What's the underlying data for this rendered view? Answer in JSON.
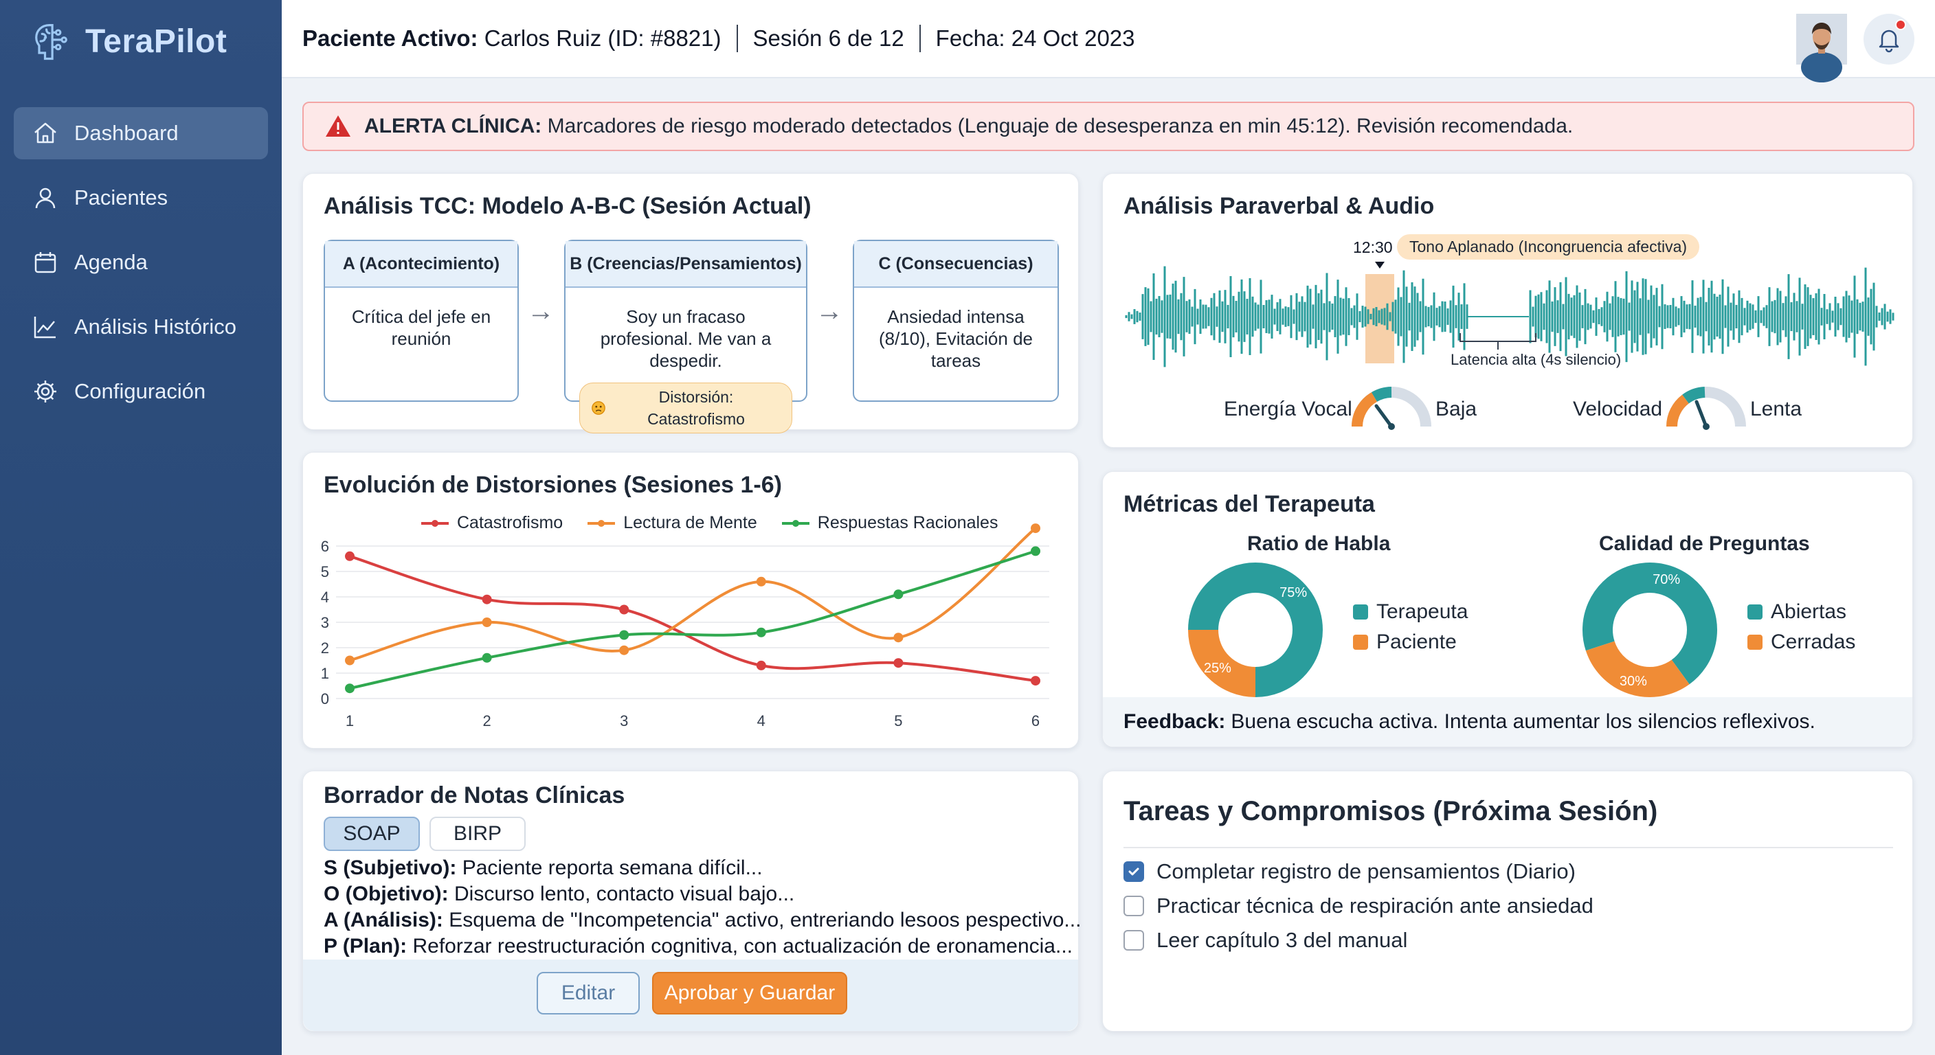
{
  "app": {
    "name": "TeraPilot"
  },
  "sidebar": {
    "items": [
      {
        "label": "Dashboard",
        "icon": "home-icon",
        "active": true
      },
      {
        "label": "Pacientes",
        "icon": "user-icon",
        "active": false
      },
      {
        "label": "Agenda",
        "icon": "calendar-icon",
        "active": false
      },
      {
        "label": "Análisis Histórico",
        "icon": "chart-line-icon",
        "active": false
      },
      {
        "label": "Configuración",
        "icon": "gear-icon",
        "active": false
      }
    ]
  },
  "header": {
    "patient_label": "Paciente Activo:",
    "patient_value": "Carlos Ruiz (ID: #8821)",
    "session": "Sesión 6 de 12",
    "date": "Fecha: 24 Oct 2023"
  },
  "alert": {
    "label": "ALERTA CLÍNICA:",
    "text": "Marcadores de riesgo moderado detectados (Lenguaje de desesperanza en min 45:12). Revisión recomendada."
  },
  "abc": {
    "title": "Análisis TCC: Modelo A-B-C (Sesión Actual)",
    "a_head": "A (Acontecimiento)",
    "a_body": "Crítica del jefe en reunión",
    "b_head": "B (Creencias/Pensamientos)",
    "b_body": "Soy un fracaso profesional. Me van a despedir.",
    "b_badge": "Distorsión: Catastrofismo",
    "c_head": "C (Consecuencias)",
    "c_body": "Ansiedad intensa (8/10), Evitación de tareas"
  },
  "paraverbal": {
    "title": "Análisis Paraverbal & Audio",
    "marker_time": "12:30",
    "tone_badge": "Tono Aplanado (Incongruencia afectiva)",
    "latency": "Latencia alta (4s silencio)",
    "energy_label": "Energía Vocal",
    "energy_value": "Baja",
    "speed_label": "Velocidad",
    "speed_value": "Lenta",
    "colors": {
      "wave": "#2a9d9c",
      "highlight": "#f6c89a"
    }
  },
  "evolution": {
    "title": "Evolución de Distorsiones (Sesiones 1-6)"
  },
  "chart_data": {
    "type": "line",
    "x": [
      1,
      2,
      3,
      4,
      5,
      6
    ],
    "series": [
      {
        "name": "Catastrofismo",
        "color": "#d94040",
        "values": [
          5.6,
          3.9,
          3.5,
          1.3,
          1.4,
          0.7
        ]
      },
      {
        "name": "Lectura de Mente",
        "color": "#f08c36",
        "values": [
          1.5,
          3.0,
          1.9,
          4.6,
          2.4,
          6.7
        ]
      },
      {
        "name": "Respuestas Racionales",
        "color": "#2fa84f",
        "values": [
          0.4,
          1.6,
          2.5,
          2.6,
          4.1,
          5.8
        ]
      }
    ],
    "yticks": [
      0,
      1,
      2,
      3,
      4,
      5,
      6
    ],
    "ylim": [
      0,
      6
    ],
    "legend": "top",
    "grid": true
  },
  "metrics": {
    "title": "Métricas del Terapeuta",
    "ratio_title": "Ratio de Habla",
    "ratio": [
      {
        "label": "Terapeuta",
        "value": 75,
        "pct": "75%",
        "color": "#2a9d9c"
      },
      {
        "label": "Paciente",
        "value": 25,
        "pct": "25%",
        "color": "#f08c36"
      }
    ],
    "quality_title": "Calidad de Preguntas",
    "quality": [
      {
        "label": "Abiertas",
        "value": 70,
        "pct": "70%",
        "color": "#2a9d9c"
      },
      {
        "label": "Cerradas",
        "value": 30,
        "pct": "30%",
        "color": "#f08c36"
      }
    ],
    "feedback_label": "Feedback:",
    "feedback_text": "Buena escucha activa. Intenta aumentar los silencios reflexivos."
  },
  "notes": {
    "title": "Borrador de Notas Clínicas",
    "tab_soap": "SOAP",
    "tab_birp": "BIRP",
    "s_label": "S (Subjetivo):",
    "s_text": "Paciente reporta semana difícil...",
    "o_label": "O (Objetivo):",
    "o_text": "Discurso lento, contacto visual bajo...",
    "a_label": "A (Análisis):",
    "a_text": "Esquema de \"Incompetencia\" activo, entreriando lesoos pespectivo...",
    "p_label": "P (Plan):",
    "p_text": "Reforzar reestructuración cognitiva, con actualización de eronamencia...",
    "edit_label": "Editar",
    "approve_label": "Aprobar y Guardar"
  },
  "tasks": {
    "title": "Tareas y Compromisos (Próxima Sesión)",
    "items": [
      {
        "label": "Completar registro de pensamientos (Diario)",
        "checked": true
      },
      {
        "label": "Practicar técnica de respiración ante ansiedad",
        "checked": false
      },
      {
        "label": "Leer capítulo 3 del manual",
        "checked": false
      }
    ]
  }
}
